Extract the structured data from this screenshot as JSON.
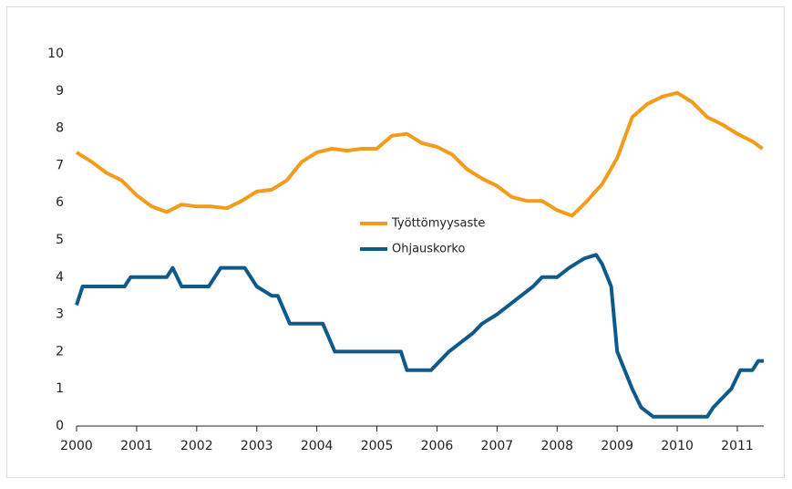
{
  "chart_data": {
    "type": "line",
    "xlim": [
      2000,
      2011.44
    ],
    "xticks": [
      2000,
      2001,
      2002,
      2003,
      2004,
      2005,
      2006,
      2007,
      2008,
      2009,
      2010,
      2011
    ],
    "ylim": [
      0,
      10
    ],
    "yticks": [
      0,
      1,
      2,
      3,
      4,
      5,
      6,
      7,
      8,
      9,
      10
    ],
    "grid": false,
    "legend": "center",
    "series": [
      {
        "name": "Työttömyysaste",
        "color": "#f39c1b",
        "x": [
          2000,
          2000.25,
          2000.5,
          2000.75,
          2001,
          2001.25,
          2001.5,
          2001.75,
          2002,
          2002.25,
          2002.5,
          2002.75,
          2003,
          2003.25,
          2003.5,
          2003.75,
          2004,
          2004.25,
          2004.5,
          2004.75,
          2005,
          2005.25,
          2005.5,
          2005.75,
          2006,
          2006.25,
          2006.5,
          2006.75,
          2007,
          2007.25,
          2007.5,
          2007.75,
          2008,
          2008.25,
          2008.5,
          2008.75,
          2009,
          2009.25,
          2009.5,
          2009.75,
          2010,
          2010.25,
          2010.5,
          2010.75,
          2011,
          2011.25,
          2011.42
        ],
        "values": [
          7.35,
          7.1,
          6.8,
          6.6,
          6.2,
          5.9,
          5.75,
          5.95,
          5.9,
          5.9,
          5.85,
          6.05,
          6.3,
          6.35,
          6.6,
          7.1,
          7.35,
          7.45,
          7.4,
          7.45,
          7.45,
          7.8,
          7.85,
          7.6,
          7.5,
          7.3,
          6.9,
          6.65,
          6.45,
          6.15,
          6.05,
          6.05,
          5.8,
          5.65,
          6.05,
          6.5,
          7.2,
          8.3,
          8.65,
          8.85,
          8.95,
          8.7,
          8.3,
          8.1,
          7.85,
          7.65,
          7.45
        ]
      },
      {
        "name": "Ohjauskorko",
        "color": "#0e5a8a",
        "x": [
          2000,
          2000.1,
          2000.8,
          2000.9,
          2001.5,
          2001.6,
          2001.75,
          2002.2,
          2002.4,
          2002.8,
          2003.0,
          2003.25,
          2003.35,
          2003.55,
          2004.1,
          2004.3,
          2005.4,
          2005.5,
          2005.9,
          2006.2,
          2006.4,
          2006.6,
          2006.75,
          2007.0,
          2007.2,
          2007.4,
          2007.6,
          2007.75,
          2008.0,
          2008.2,
          2008.45,
          2008.65,
          2008.75,
          2008.9,
          2009.0,
          2009.25,
          2009.4,
          2009.6,
          2010.5,
          2010.6,
          2010.75,
          2010.9,
          2011.05,
          2011.25,
          2011.35,
          2011.44
        ],
        "values": [
          3.25,
          3.75,
          3.75,
          4.0,
          4.0,
          4.25,
          3.75,
          3.75,
          4.25,
          4.25,
          3.75,
          3.5,
          3.5,
          2.75,
          2.75,
          2.0,
          2.0,
          1.5,
          1.5,
          2.0,
          2.25,
          2.5,
          2.75,
          3.0,
          3.25,
          3.5,
          3.75,
          4.0,
          4.0,
          4.25,
          4.5,
          4.6,
          4.35,
          3.75,
          2.0,
          1.0,
          0.5,
          0.25,
          0.25,
          0.5,
          0.75,
          1.0,
          1.5,
          1.5,
          1.75,
          1.75
        ]
      }
    ]
  }
}
